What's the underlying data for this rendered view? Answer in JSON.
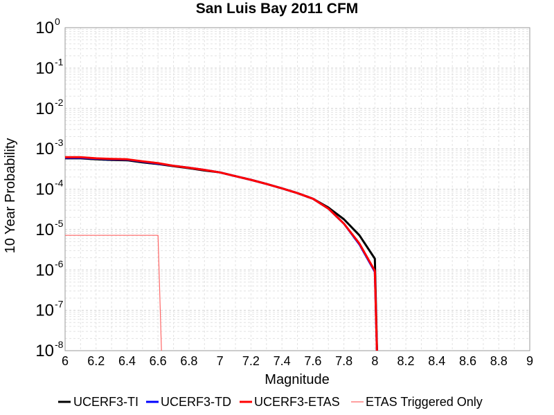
{
  "chart_data": {
    "type": "line",
    "title": "San Luis Bay 2011 CFM",
    "xlabel": "Magnitude",
    "ylabel": "10 Year Probability",
    "xlim": [
      6,
      9
    ],
    "ylim": [
      1e-08,
      1
    ],
    "yscale": "log",
    "grid": true,
    "legend_position": "bottom",
    "x_ticks": [
      "6",
      "6.2",
      "6.4",
      "6.6",
      "6.8",
      "7",
      "7.2",
      "7.4",
      "7.6",
      "7.8",
      "8",
      "8.2",
      "8.4",
      "8.6",
      "8.8",
      "9"
    ],
    "y_ticks": [
      {
        "base": "10",
        "exp": "0"
      },
      {
        "base": "10",
        "exp": "-1"
      },
      {
        "base": "10",
        "exp": "-2"
      },
      {
        "base": "10",
        "exp": "-3"
      },
      {
        "base": "10",
        "exp": "-4"
      },
      {
        "base": "10",
        "exp": "-5"
      },
      {
        "base": "10",
        "exp": "-6"
      },
      {
        "base": "10",
        "exp": "-7"
      },
      {
        "base": "10",
        "exp": "-8"
      }
    ],
    "series": [
      {
        "name": "UCERF3-TI",
        "color": "#000000",
        "width": 3,
        "x": [
          6.0,
          6.1,
          6.2,
          6.3,
          6.4,
          6.5,
          6.6,
          6.7,
          6.8,
          6.9,
          7.0,
          7.1,
          7.2,
          7.3,
          7.4,
          7.5,
          7.6,
          7.7,
          7.8,
          7.9,
          8.0,
          8.0,
          8.02
        ],
        "y": [
          0.00058,
          0.00058,
          0.00055,
          0.00053,
          0.00052,
          0.00046,
          0.00042,
          0.00037,
          0.00033,
          0.00029,
          0.00026,
          0.00021,
          0.00017,
          0.000135,
          0.000105,
          8e-05,
          5.8e-05,
          3.5e-05,
          1.8e-05,
          7.2e-06,
          1.9e-06,
          1.9e-06,
          1e-09
        ]
      },
      {
        "name": "UCERF3-TD",
        "color": "#0000ff",
        "width": 3,
        "x": [
          6.0,
          6.1,
          6.2,
          6.3,
          6.4,
          6.5,
          6.6,
          6.7,
          6.8,
          6.9,
          7.0,
          7.1,
          7.2,
          7.3,
          7.4,
          7.5,
          7.6,
          7.7,
          7.8,
          7.9,
          8.0,
          8.02
        ],
        "y": [
          0.0006,
          0.0006,
          0.00057,
          0.00055,
          0.00054,
          0.00048,
          0.00043,
          0.00038,
          0.00034,
          0.0003,
          0.00026,
          0.00021,
          0.00017,
          0.000135,
          0.000105,
          8e-05,
          5.8e-05,
          3.3e-05,
          1.4e-05,
          4.3e-06,
          9e-07,
          1e-09
        ]
      },
      {
        "name": "UCERF3-ETAS",
        "color": "#ff0000",
        "width": 3,
        "x": [
          6.0,
          6.1,
          6.2,
          6.3,
          6.4,
          6.5,
          6.6,
          6.7,
          6.8,
          6.9,
          7.0,
          7.1,
          7.2,
          7.3,
          7.4,
          7.5,
          7.6,
          7.7,
          7.8,
          7.9,
          8.0,
          8.02
        ],
        "y": [
          0.00062,
          0.00062,
          0.00058,
          0.00056,
          0.00055,
          0.00049,
          0.00044,
          0.00038,
          0.00034,
          0.0003,
          0.00026,
          0.00021,
          0.00017,
          0.000135,
          0.000105,
          8e-05,
          5.8e-05,
          3.3e-05,
          1.4e-05,
          4.5e-06,
          9.5e-07,
          1e-09
        ]
      },
      {
        "name": "ETAS Triggered Only",
        "color": "#ff6666",
        "width": 1.2,
        "x": [
          6.0,
          6.1,
          6.2,
          6.3,
          6.4,
          6.5,
          6.6,
          6.63
        ],
        "y": [
          7.2e-06,
          7.2e-06,
          7.2e-06,
          7.2e-06,
          7.2e-06,
          7.2e-06,
          7.2e-06,
          1e-09
        ]
      }
    ]
  }
}
